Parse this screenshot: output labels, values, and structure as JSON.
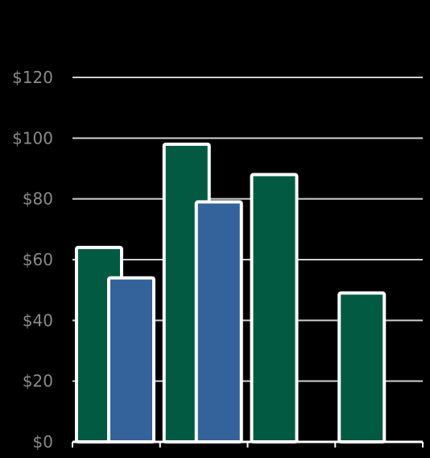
{
  "chart_data": {
    "type": "bar",
    "title": "",
    "xlabel": "",
    "ylabel": "",
    "ylim": [
      0,
      120
    ],
    "ytick_labels": [
      "$0",
      "$20",
      "$40",
      "$60",
      "$80",
      "$100",
      "$120"
    ],
    "grid": true,
    "groups": 4,
    "series": [
      {
        "color": "#025a43",
        "values": [
          64,
          98,
          88,
          49
        ]
      },
      {
        "color": "#33639a",
        "values": [
          54,
          79,
          null,
          null
        ]
      }
    ]
  }
}
